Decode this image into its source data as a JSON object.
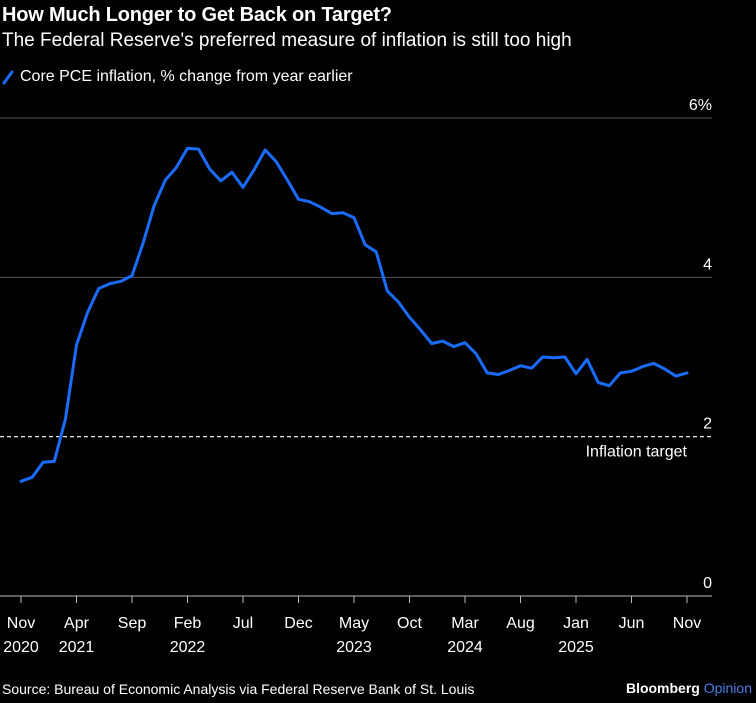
{
  "header": {
    "title": "How Much Longer to Get Back on Target?",
    "subtitle": "The Federal Reserve's preferred measure of inflation is still too high"
  },
  "legend": {
    "label": "Core PCE inflation, % change from year earlier",
    "color": "#1a6cff"
  },
  "footer": {
    "source": "Source: Bureau of Economic Analysis via Federal Reserve Bank of St. Louis"
  },
  "brand": {
    "part1": "Bloomberg",
    "part2": "Opinion"
  },
  "chart_data": {
    "type": "line",
    "title": "How Much Longer to Get Back on Target?",
    "subtitle": "The Federal Reserve's preferred measure of inflation is still too high",
    "ylabel": "%",
    "ylim": [
      0,
      6
    ],
    "yticks": [
      {
        "value": 0,
        "label": "0"
      },
      {
        "value": 2,
        "label": "2"
      },
      {
        "value": 4,
        "label": "4"
      },
      {
        "value": 6,
        "label": "6%"
      }
    ],
    "xticks": [
      {
        "index": 0,
        "label": "Nov",
        "sub": "2020"
      },
      {
        "index": 5,
        "label": "Apr",
        "sub": "2021"
      },
      {
        "index": 10,
        "label": "Sep",
        "sub": ""
      },
      {
        "index": 15,
        "label": "Feb",
        "sub": "2022"
      },
      {
        "index": 20,
        "label": "Jul",
        "sub": ""
      },
      {
        "index": 25,
        "label": "Dec",
        "sub": ""
      },
      {
        "index": 30,
        "label": "May",
        "sub": "2023"
      },
      {
        "index": 35,
        "label": "Oct",
        "sub": ""
      },
      {
        "index": 40,
        "label": "Mar",
        "sub": "2024"
      },
      {
        "index": 45,
        "label": "Aug",
        "sub": ""
      },
      {
        "index": 50,
        "label": "Jan",
        "sub": "2025"
      },
      {
        "index": 55,
        "label": "Jun",
        "sub": ""
      },
      {
        "index": 60,
        "label": "Nov",
        "sub": ""
      }
    ],
    "reference_line": {
      "value": 2,
      "label": "Inflation target",
      "style": "dashed"
    },
    "series": [
      {
        "name": "Core PCE inflation, % change from year earlier",
        "color": "#1a6cff",
        "values": [
          1.44,
          1.49,
          1.68,
          1.69,
          2.22,
          3.15,
          3.56,
          3.86,
          3.92,
          3.95,
          4.02,
          4.43,
          4.9,
          5.22,
          5.38,
          5.62,
          5.61,
          5.36,
          5.21,
          5.32,
          5.13,
          5.35,
          5.6,
          5.45,
          5.22,
          4.98,
          4.95,
          4.88,
          4.8,
          4.81,
          4.75,
          4.41,
          4.32,
          3.83,
          3.69,
          3.5,
          3.34,
          3.17,
          3.2,
          3.13,
          3.18,
          3.04,
          2.8,
          2.78,
          2.83,
          2.89,
          2.86,
          3.0,
          2.99,
          3.0,
          2.79,
          2.97,
          2.68,
          2.64,
          2.8,
          2.82,
          2.88,
          2.92,
          2.85,
          2.76,
          2.8
        ]
      }
    ]
  }
}
